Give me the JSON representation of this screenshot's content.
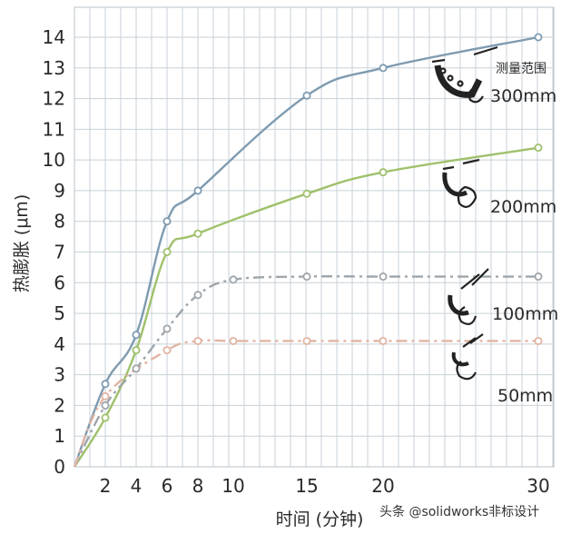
{
  "chart_data": {
    "type": "line",
    "xlabel": "时间 (分钟)",
    "ylabel": "热膨胀 (μm)",
    "x_ticks": [
      2,
      4,
      6,
      8,
      10,
      15,
      20,
      30
    ],
    "y_ticks": [
      0,
      1,
      2,
      3,
      4,
      5,
      6,
      7,
      8,
      9,
      10,
      11,
      12,
      13,
      14
    ],
    "xlim": [
      0,
      30
    ],
    "ylim": [
      0,
      14
    ],
    "grid": true,
    "legend_title": "测量范围",
    "series": [
      {
        "name": "300mm",
        "style": "solid",
        "color": "#7f9bb0",
        "x": [
          0,
          2,
          4,
          6,
          8,
          15,
          20,
          30
        ],
        "y": [
          0,
          2.7,
          4.3,
          8.0,
          9.0,
          12.1,
          13.0,
          14.0
        ]
      },
      {
        "name": "200mm",
        "style": "solid",
        "color": "#9fc16b",
        "x": [
          0,
          2,
          4,
          6,
          8,
          15,
          20,
          30
        ],
        "y": [
          0,
          1.6,
          3.8,
          7.0,
          7.6,
          8.9,
          9.6,
          10.4
        ]
      },
      {
        "name": "100mm",
        "style": "dashdot",
        "color": "#9ea6ab",
        "x": [
          0,
          2,
          4,
          6,
          8,
          10,
          15,
          20,
          30
        ],
        "y": [
          0,
          2.0,
          3.2,
          4.5,
          5.6,
          6.1,
          6.2,
          6.2,
          6.2
        ]
      },
      {
        "name": "50mm",
        "style": "dashdot",
        "color": "#e2b4a3",
        "x": [
          0,
          2,
          6,
          8,
          10,
          15,
          20,
          30
        ],
        "y": [
          0,
          2.3,
          3.8,
          4.1,
          4.1,
          4.1,
          4.1,
          4.1
        ]
      }
    ]
  },
  "watermark": "头条 @solidworks非标设计"
}
